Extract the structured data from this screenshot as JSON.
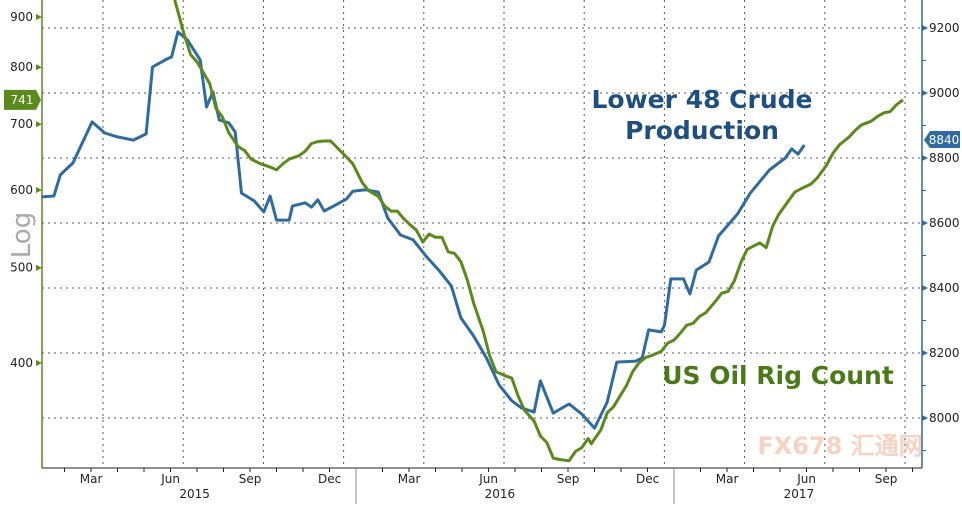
{
  "chart_data": {
    "type": "line",
    "title": "",
    "annotations": {
      "production_line1": "Lower 48 Crude",
      "production_line2": "Production",
      "rig_count": "US Oil Rig Count"
    },
    "left_axis": {
      "label": "Log",
      "scale": "log",
      "ticks": [
        400,
        500,
        600,
        700,
        800,
        900
      ],
      "range": [
        310,
        940
      ],
      "current_value": "741",
      "color": "#5a8a1c"
    },
    "right_axis": {
      "label": "",
      "scale": "linear",
      "ticks": [
        8000,
        8200,
        8400,
        8600,
        8800,
        9000,
        9200
      ],
      "range": [
        7840,
        9290
      ],
      "current_value": "8840",
      "color": "#2f6aa0"
    },
    "x_axis": {
      "month_labels": [
        {
          "label": "Mar",
          "x": 2015.167
        },
        {
          "label": "Jun",
          "x": 2015.417
        },
        {
          "label": "Sep",
          "x": 2015.667
        },
        {
          "label": "Dec",
          "x": 2015.917
        },
        {
          "label": "Mar",
          "x": 2016.167
        },
        {
          "label": "Jun",
          "x": 2016.417
        },
        {
          "label": "Sep",
          "x": 2016.667
        },
        {
          "label": "Dec",
          "x": 2016.917
        },
        {
          "label": "Mar",
          "x": 2017.167
        },
        {
          "label": "Jun",
          "x": 2017.417
        },
        {
          "label": "Sep",
          "x": 2017.667
        }
      ],
      "year_labels": [
        {
          "label": "2015",
          "x": 2015.48
        },
        {
          "label": "2016",
          "x": 2016.44
        },
        {
          "label": "2017",
          "x": 2017.38
        }
      ],
      "range": [
        2015.0,
        2017.78
      ]
    },
    "series": [
      {
        "name": "Lower 48 Crude Production",
        "axis": "right",
        "color": "#2f6aa0",
        "points": [
          [
            2015.01,
            8680
          ],
          [
            2015.05,
            8683
          ],
          [
            2015.07,
            8748
          ],
          [
            2015.11,
            8785
          ],
          [
            2015.17,
            8911
          ],
          [
            2015.21,
            8877
          ],
          [
            2015.25,
            8865
          ],
          [
            2015.3,
            8855
          ],
          [
            2015.34,
            8874
          ],
          [
            2015.36,
            9080
          ],
          [
            2015.4,
            9102
          ],
          [
            2015.42,
            9111
          ],
          [
            2015.44,
            9188
          ],
          [
            2015.47,
            9163
          ],
          [
            2015.51,
            9102
          ],
          [
            2015.53,
            8957
          ],
          [
            2015.55,
            9003
          ],
          [
            2015.57,
            8917
          ],
          [
            2015.6,
            8908
          ],
          [
            2015.62,
            8880
          ],
          [
            2015.64,
            8692
          ],
          [
            2015.68,
            8668
          ],
          [
            2015.71,
            8634
          ],
          [
            2015.73,
            8683
          ],
          [
            2015.75,
            8609
          ],
          [
            2015.79,
            8609
          ],
          [
            2015.8,
            8652
          ],
          [
            2015.84,
            8662
          ],
          [
            2015.86,
            8649
          ],
          [
            2015.88,
            8671
          ],
          [
            2015.9,
            8637
          ],
          [
            2015.93,
            8652
          ],
          [
            2015.97,
            8674
          ],
          [
            2015.99,
            8698
          ],
          [
            2016.03,
            8702
          ],
          [
            2016.07,
            8695
          ],
          [
            2016.1,
            8615
          ],
          [
            2016.14,
            8563
          ],
          [
            2016.18,
            8548
          ],
          [
            2016.22,
            8498
          ],
          [
            2016.26,
            8455
          ],
          [
            2016.3,
            8406
          ],
          [
            2016.33,
            8308
          ],
          [
            2016.37,
            8252
          ],
          [
            2016.41,
            8185
          ],
          [
            2016.45,
            8102
          ],
          [
            2016.49,
            8053
          ],
          [
            2016.52,
            8031
          ],
          [
            2016.56,
            8018
          ],
          [
            2016.58,
            8114
          ],
          [
            2016.62,
            8015
          ],
          [
            2016.67,
            8043
          ],
          [
            2016.71,
            8012
          ],
          [
            2016.75,
            7969
          ],
          [
            2016.79,
            8049
          ],
          [
            2016.82,
            8172
          ],
          [
            2016.88,
            8175
          ],
          [
            2016.9,
            8185
          ],
          [
            2016.92,
            8271
          ],
          [
            2016.96,
            8265
          ],
          [
            2016.97,
            8286
          ],
          [
            2016.99,
            8428
          ],
          [
            2017.03,
            8428
          ],
          [
            2017.05,
            8382
          ],
          [
            2017.07,
            8455
          ],
          [
            2017.11,
            8480
          ],
          [
            2017.14,
            8560
          ],
          [
            2017.2,
            8628
          ],
          [
            2017.24,
            8692
          ],
          [
            2017.3,
            8763
          ],
          [
            2017.35,
            8800
          ],
          [
            2017.37,
            8828
          ],
          [
            2017.39,
            8812
          ],
          [
            2017.41,
            8840
          ]
        ]
      },
      {
        "name": "US Oil Rig Count",
        "axis": "left",
        "color": "#5a8a1c",
        "points": [
          [
            2015.43,
            937
          ],
          [
            2015.46,
            863
          ],
          [
            2015.48,
            824
          ],
          [
            2015.5,
            810
          ],
          [
            2015.52,
            790
          ],
          [
            2015.54,
            770
          ],
          [
            2015.56,
            726
          ],
          [
            2015.58,
            712
          ],
          [
            2015.6,
            686
          ],
          [
            2015.63,
            664
          ],
          [
            2015.65,
            658
          ],
          [
            2015.67,
            645
          ],
          [
            2015.7,
            638
          ],
          [
            2015.73,
            633
          ],
          [
            2015.75,
            629
          ],
          [
            2015.77,
            638
          ],
          [
            2015.79,
            645
          ],
          [
            2015.82,
            650
          ],
          [
            2015.84,
            657
          ],
          [
            2015.86,
            669
          ],
          [
            2015.88,
            672
          ],
          [
            2015.9,
            673
          ],
          [
            2015.92,
            673
          ],
          [
            2015.95,
            658
          ],
          [
            2015.97,
            648
          ],
          [
            2015.99,
            638
          ],
          [
            2016.02,
            610
          ],
          [
            2016.04,
            599
          ],
          [
            2016.07,
            591
          ],
          [
            2016.09,
            578
          ],
          [
            2016.11,
            571
          ],
          [
            2016.13,
            571
          ],
          [
            2016.15,
            561
          ],
          [
            2016.17,
            553
          ],
          [
            2016.19,
            546
          ],
          [
            2016.21,
            531
          ],
          [
            2016.23,
            541
          ],
          [
            2016.25,
            537
          ],
          [
            2016.27,
            537
          ],
          [
            2016.29,
            519
          ],
          [
            2016.31,
            517
          ],
          [
            2016.33,
            507
          ],
          [
            2016.35,
            486
          ],
          [
            2016.37,
            460
          ],
          [
            2016.4,
            431
          ],
          [
            2016.42,
            407
          ],
          [
            2016.44,
            392
          ],
          [
            2016.47,
            388
          ],
          [
            2016.49,
            386
          ],
          [
            2016.51,
            370
          ],
          [
            2016.53,
            358
          ],
          [
            2016.56,
            349
          ],
          [
            2016.58,
            337
          ],
          [
            2016.6,
            332
          ],
          [
            2016.62,
            320
          ],
          [
            2016.64,
            319
          ],
          [
            2016.67,
            318
          ],
          [
            2016.69,
            325
          ],
          [
            2016.71,
            328
          ],
          [
            2016.73,
            335
          ],
          [
            2016.74,
            331
          ],
          [
            2016.77,
            342
          ],
          [
            2016.79,
            356
          ],
          [
            2016.81,
            361
          ],
          [
            2016.83,
            370
          ],
          [
            2016.85,
            379
          ],
          [
            2016.87,
            392
          ],
          [
            2016.89,
            400
          ],
          [
            2016.91,
            405
          ],
          [
            2016.93,
            407
          ],
          [
            2016.96,
            411
          ],
          [
            2016.98,
            419
          ],
          [
            2017.0,
            422
          ],
          [
            2017.02,
            429
          ],
          [
            2017.04,
            437
          ],
          [
            2017.06,
            439
          ],
          [
            2017.08,
            446
          ],
          [
            2017.1,
            450
          ],
          [
            2017.13,
            462
          ],
          [
            2017.15,
            471
          ],
          [
            2017.17,
            473
          ],
          [
            2017.19,
            485
          ],
          [
            2017.21,
            506
          ],
          [
            2017.23,
            522
          ],
          [
            2017.25,
            526
          ],
          [
            2017.27,
            530
          ],
          [
            2017.29,
            524
          ],
          [
            2017.31,
            551
          ],
          [
            2017.33,
            567
          ],
          [
            2017.36,
            585
          ],
          [
            2017.38,
            597
          ],
          [
            2017.41,
            604
          ],
          [
            2017.43,
            608
          ],
          [
            2017.45,
            617
          ],
          [
            2017.48,
            636
          ],
          [
            2017.5,
            654
          ],
          [
            2017.52,
            667
          ],
          [
            2017.55,
            679
          ],
          [
            2017.57,
            690
          ],
          [
            2017.59,
            699
          ],
          [
            2017.62,
            705
          ],
          [
            2017.64,
            713
          ],
          [
            2017.66,
            719
          ],
          [
            2017.68,
            721
          ],
          [
            2017.7,
            733
          ],
          [
            2017.72,
            741
          ]
        ]
      }
    ],
    "watermark": "FX678 汇通网"
  }
}
